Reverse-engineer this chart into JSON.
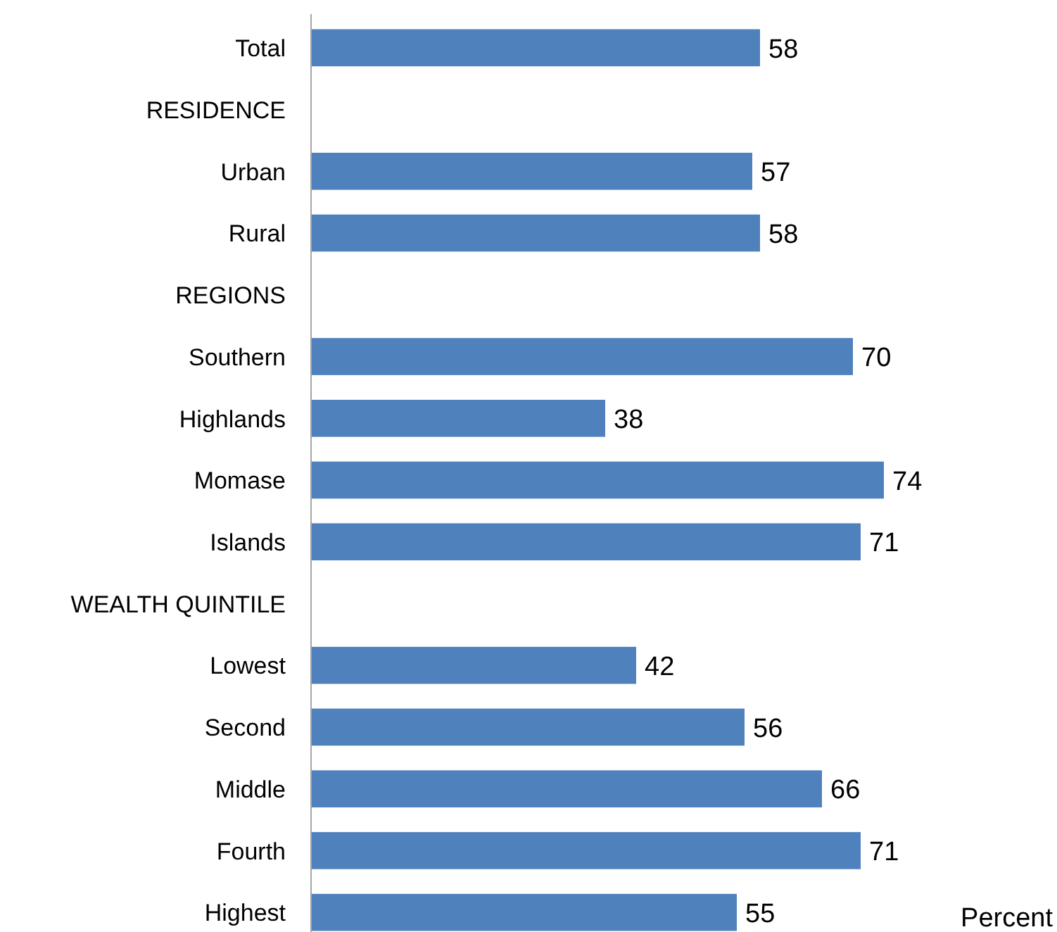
{
  "chart_data": {
    "type": "bar",
    "orientation": "horizontal",
    "xlabel": "Percent",
    "categories": [
      "Total",
      "RESIDENCE",
      "Urban",
      "Rural",
      "REGIONS",
      "Southern",
      "Highlands",
      "Momase",
      "Islands",
      "WEALTH QUINTILE",
      "Lowest",
      "Second",
      "Middle",
      "Fourth",
      "Highest"
    ],
    "values": [
      58,
      null,
      57,
      58,
      null,
      70,
      38,
      74,
      71,
      null,
      42,
      56,
      66,
      71,
      55
    ],
    "color": "#4f81bd",
    "data_labels": true,
    "tick_labels": "y"
  }
}
